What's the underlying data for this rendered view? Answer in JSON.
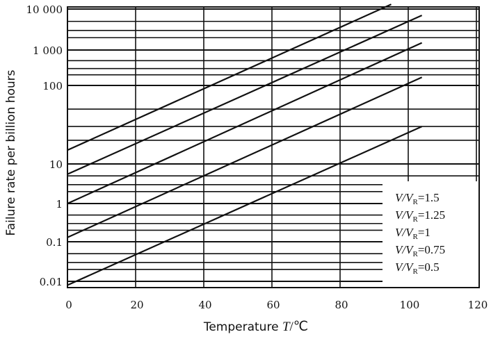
{
  "chart_data": {
    "type": "line",
    "title": "",
    "xlabel": "Temperature",
    "xlabel_var": "T",
    "xlabel_unit": "/℃",
    "ylabel": "Failure rate per billion hours",
    "xlim": [
      0,
      120
    ],
    "ylim": [
      0.01,
      10000
    ],
    "yscale": "log",
    "grid": true,
    "legend_placement": "bottom-right",
    "x_ticks": [
      "0",
      "20",
      "40",
      "60",
      "80",
      "100",
      "120"
    ],
    "x_tick_values": [
      0,
      20,
      40,
      60,
      80,
      100,
      120
    ],
    "y_ticks": [
      "0.01",
      "0.1",
      "1",
      "10",
      "100",
      "1 000",
      "10 000"
    ],
    "y_tick_values": [
      0.01,
      0.1,
      1,
      10,
      100,
      1000,
      10000
    ],
    "series": [
      {
        "name": "V/VR=1.5",
        "ratio": "1.5",
        "x": [
          0,
          95
        ],
        "y": [
          15,
          13000
        ]
      },
      {
        "name": "V/VR=1.25",
        "ratio": "1.25",
        "x": [
          0,
          104
        ],
        "y": [
          5.5,
          7000
        ]
      },
      {
        "name": "V/VR=1",
        "ratio": "1",
        "x": [
          0,
          104
        ],
        "y": [
          1,
          1500
        ]
      },
      {
        "name": "V/VR=0.75",
        "ratio": "0.75",
        "x": [
          0,
          104
        ],
        "y": [
          0.13,
          170
        ]
      },
      {
        "name": "V/VR=0.5",
        "ratio": "0.5",
        "x": [
          0,
          104
        ],
        "y": [
          0.008,
          30
        ]
      }
    ],
    "legend_prefix": "V/V",
    "legend_sub": "R"
  }
}
